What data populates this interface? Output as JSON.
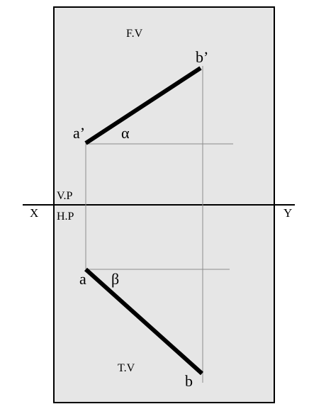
{
  "labels": {
    "front_view": "F.V",
    "top_view": "T.V",
    "vertical_plane": "V.P",
    "horizontal_plane": "H.P",
    "axis_left": "X",
    "axis_right": "Y",
    "point_a_front": "a’",
    "point_b_front": "b’",
    "point_a_top": "a",
    "point_b_top": "b",
    "angle_alpha": "α",
    "angle_beta": "β"
  },
  "colors": {
    "plane_fill": "#e6e6e6",
    "stroke": "#000000",
    "projector": "#8c8c8c"
  }
}
